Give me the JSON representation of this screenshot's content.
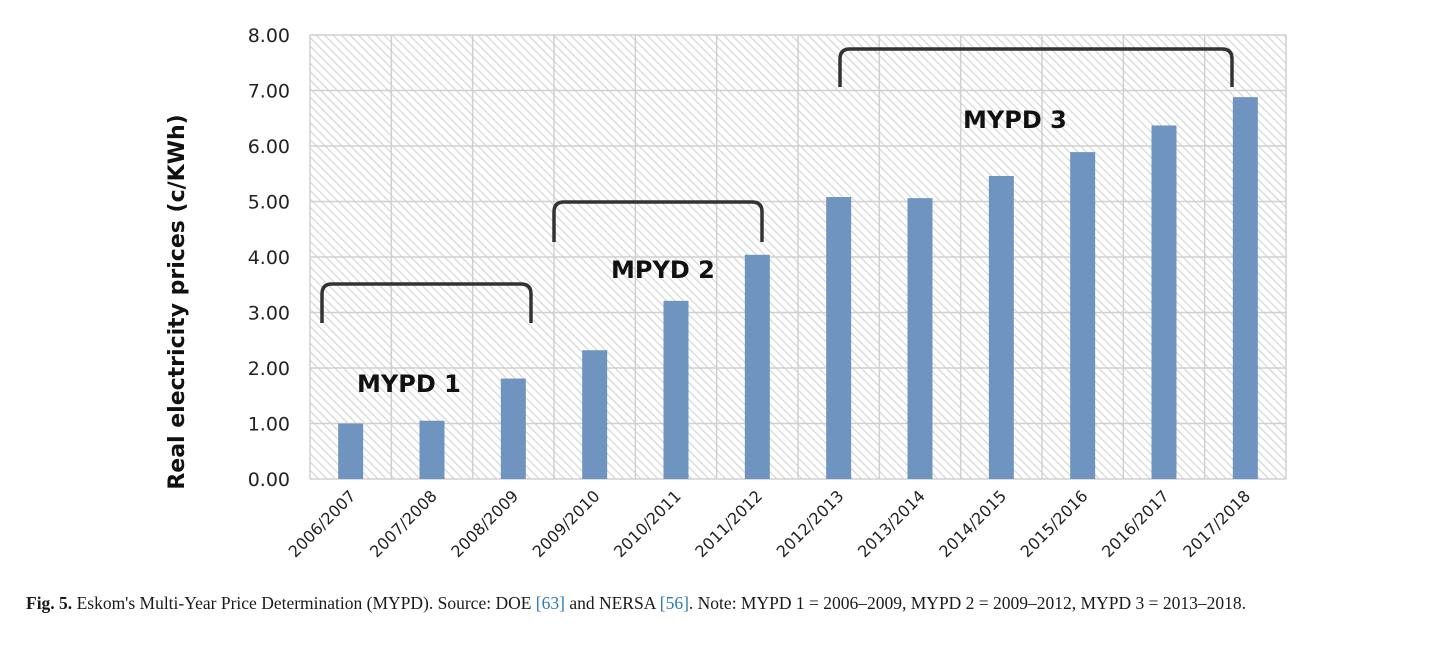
{
  "chart_data": {
    "type": "bar",
    "categories": [
      "2006/2007",
      "2007/2008",
      "2008/2009",
      "2009/2010",
      "2010/2011",
      "2011/2012",
      "2012/2013",
      "2013/2014",
      "2014/2015",
      "2015/2016",
      "2016/2017",
      "2017/2018"
    ],
    "values": [
      1.0,
      1.05,
      1.81,
      2.32,
      3.21,
      4.04,
      5.08,
      5.06,
      5.46,
      5.89,
      6.37,
      6.88
    ],
    "ylabel": "Real electricity prices (c/KWh)",
    "xlabel": "",
    "ylim": [
      0,
      8
    ],
    "ytick_labels": [
      "0.00",
      "1.00",
      "2.00",
      "3.00",
      "4.00",
      "5.00",
      "6.00",
      "7.00",
      "8.00"
    ],
    "grid": true,
    "bar_color": "#6f94bf",
    "annotations": [
      {
        "label": "MYPD 1",
        "from_category": "2006/2007",
        "to_category": "2008/2009"
      },
      {
        "label": "MPYD 2",
        "from_category": "2009/2010",
        "to_category": "2011/2012"
      },
      {
        "label": "MYPD 3",
        "from_category": "2012/2013",
        "to_category": "2017/2018"
      }
    ]
  },
  "caption": {
    "fig_label": "Fig. 5.",
    "text_a": " Eskom's Multi-Year Price Determination (MYPD). Source: DOE ",
    "ref1": "[63]",
    "text_b": " and NERSA ",
    "ref2": "[56]",
    "text_c": ". Note: MYPD 1 = 2006–2009, MYPD 2 = 2009–2012, MYPD 3 = 2013–2018."
  }
}
